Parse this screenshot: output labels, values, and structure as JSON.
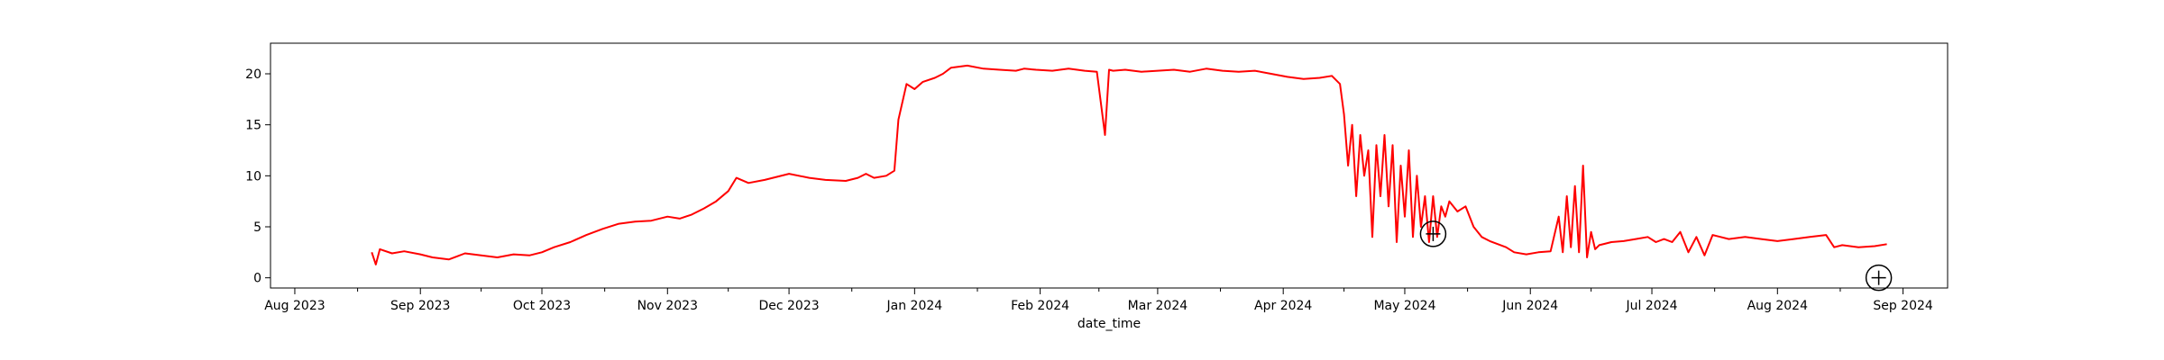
{
  "chart_data": {
    "type": "line",
    "title": "",
    "xlabel": "date_time",
    "ylabel": "",
    "xlim": [
      "2023-07-26",
      "2024-09-12"
    ],
    "ylim": [
      -1,
      23
    ],
    "grid": false,
    "legend": "none",
    "y_ticks": [
      0,
      5,
      10,
      15,
      20
    ],
    "x_ticks": [
      {
        "date": "2023-08-01",
        "label": "Aug 2023"
      },
      {
        "date": "2023-09-01",
        "label": "Sep 2023"
      },
      {
        "date": "2023-10-01",
        "label": "Oct 2023"
      },
      {
        "date": "2023-11-01",
        "label": "Nov 2023"
      },
      {
        "date": "2023-12-01",
        "label": "Dec 2023"
      },
      {
        "date": "2024-01-01",
        "label": "Jan 2024"
      },
      {
        "date": "2024-02-01",
        "label": "Feb 2024"
      },
      {
        "date": "2024-03-01",
        "label": "Mar 2024"
      },
      {
        "date": "2024-04-01",
        "label": "Apr 2024"
      },
      {
        "date": "2024-05-01",
        "label": "May 2024"
      },
      {
        "date": "2024-06-01",
        "label": "Jun 2024"
      },
      {
        "date": "2024-07-01",
        "label": "Jul 2024"
      },
      {
        "date": "2024-08-01",
        "label": "Aug 2024"
      },
      {
        "date": "2024-09-01",
        "label": "Sep 2024"
      }
    ],
    "series": [
      {
        "color": "#ff0000",
        "x": [
          "2023-08-20",
          "2023-08-21",
          "2023-08-22",
          "2023-08-25",
          "2023-08-28",
          "2023-09-01",
          "2023-09-04",
          "2023-09-08",
          "2023-09-10",
          "2023-09-12",
          "2023-09-16",
          "2023-09-20",
          "2023-09-24",
          "2023-09-28",
          "2023-10-01",
          "2023-10-04",
          "2023-10-08",
          "2023-10-12",
          "2023-10-16",
          "2023-10-20",
          "2023-10-24",
          "2023-10-28",
          "2023-11-01",
          "2023-11-04",
          "2023-11-07",
          "2023-11-10",
          "2023-11-13",
          "2023-11-16",
          "2023-11-18",
          "2023-11-21",
          "2023-11-25",
          "2023-12-01",
          "2023-12-06",
          "2023-12-10",
          "2023-12-15",
          "2023-12-18",
          "2023-12-20",
          "2023-12-22",
          "2023-12-25",
          "2023-12-27",
          "2023-12-28",
          "2023-12-30",
          "2024-01-01",
          "2024-01-03",
          "2024-01-06",
          "2024-01-08",
          "2024-01-10",
          "2024-01-14",
          "2024-01-18",
          "2024-01-22",
          "2024-01-26",
          "2024-01-28",
          "2024-01-31",
          "2024-02-04",
          "2024-02-08",
          "2024-02-12",
          "2024-02-15",
          "2024-02-17",
          "2024-02-18",
          "2024-02-19",
          "2024-02-22",
          "2024-02-26",
          "2024-03-01",
          "2024-03-05",
          "2024-03-09",
          "2024-03-13",
          "2024-03-17",
          "2024-03-21",
          "2024-03-25",
          "2024-03-29",
          "2024-04-02",
          "2024-04-06",
          "2024-04-10",
          "2024-04-13",
          "2024-04-14",
          "2024-04-15",
          "2024-04-16",
          "2024-04-17",
          "2024-04-18",
          "2024-04-19",
          "2024-04-20",
          "2024-04-21",
          "2024-04-22",
          "2024-04-23",
          "2024-04-24",
          "2024-04-25",
          "2024-04-26",
          "2024-04-27",
          "2024-04-28",
          "2024-04-29",
          "2024-04-30",
          "2024-05-01",
          "2024-05-02",
          "2024-05-03",
          "2024-05-04",
          "2024-05-05",
          "2024-05-06",
          "2024-05-07",
          "2024-05-08",
          "2024-05-09",
          "2024-05-10",
          "2024-05-11",
          "2024-05-12",
          "2024-05-14",
          "2024-05-16",
          "2024-05-18",
          "2024-05-20",
          "2024-05-22",
          "2024-05-24",
          "2024-05-26",
          "2024-05-28",
          "2024-05-31",
          "2024-06-03",
          "2024-06-06",
          "2024-06-08",
          "2024-06-09",
          "2024-06-10",
          "2024-06-11",
          "2024-06-12",
          "2024-06-13",
          "2024-06-14",
          "2024-06-15",
          "2024-06-16",
          "2024-06-17",
          "2024-06-18",
          "2024-06-21",
          "2024-06-24",
          "2024-06-27",
          "2024-06-30",
          "2024-07-02",
          "2024-07-04",
          "2024-07-06",
          "2024-07-08",
          "2024-07-10",
          "2024-07-12",
          "2024-07-14",
          "2024-07-16",
          "2024-07-20",
          "2024-07-24",
          "2024-07-28",
          "2024-08-01",
          "2024-08-05",
          "2024-08-09",
          "2024-08-13",
          "2024-08-15",
          "2024-08-17",
          "2024-08-21",
          "2024-08-25",
          "2024-08-28"
        ],
        "y": [
          2.5,
          1.3,
          2.8,
          2.4,
          2.6,
          2.3,
          2.0,
          1.8,
          2.1,
          2.4,
          2.2,
          2.0,
          2.3,
          2.2,
          2.5,
          3.0,
          3.5,
          4.2,
          4.8,
          5.3,
          5.5,
          5.6,
          6.0,
          5.8,
          6.2,
          6.8,
          7.5,
          8.5,
          9.8,
          9.3,
          9.6,
          10.2,
          9.8,
          9.6,
          9.5,
          9.8,
          10.2,
          9.8,
          10.0,
          10.5,
          15.5,
          19.0,
          18.5,
          19.2,
          19.6,
          20.0,
          20.6,
          20.8,
          20.5,
          20.4,
          20.3,
          20.5,
          20.4,
          20.3,
          20.5,
          20.3,
          20.2,
          14.0,
          20.4,
          20.3,
          20.4,
          20.2,
          20.3,
          20.4,
          20.2,
          20.5,
          20.3,
          20.2,
          20.3,
          20.0,
          19.7,
          19.5,
          19.6,
          19.8,
          19.4,
          19.0,
          16.0,
          11.0,
          15.0,
          8.0,
          14.0,
          10.0,
          12.5,
          4.0,
          13.0,
          8.0,
          14.0,
          7.0,
          13.0,
          3.5,
          11.0,
          6.0,
          12.5,
          4.0,
          10.0,
          5.0,
          8.0,
          3.5,
          8.0,
          4.0,
          7.0,
          6.0,
          7.5,
          6.5,
          7.0,
          5.0,
          4.0,
          3.6,
          3.3,
          3.0,
          2.5,
          2.3,
          2.5,
          2.6,
          6.0,
          2.5,
          8.0,
          3.0,
          9.0,
          2.5,
          11.0,
          2.0,
          4.5,
          2.8,
          3.2,
          3.5,
          3.6,
          3.8,
          4.0,
          3.5,
          3.8,
          3.5,
          4.5,
          2.5,
          4.0,
          2.2,
          4.2,
          3.8,
          4.0,
          3.8,
          3.6,
          3.8,
          4.0,
          4.2,
          3.0,
          3.2,
          3.0,
          3.1,
          3.3
        ]
      }
    ],
    "annotations": [
      {
        "x": "2024-05-08",
        "y": 4.3,
        "marker": "circle-plus"
      },
      {
        "x": "2024-08-26",
        "y": 0.0,
        "marker": "circle-plus"
      }
    ]
  }
}
